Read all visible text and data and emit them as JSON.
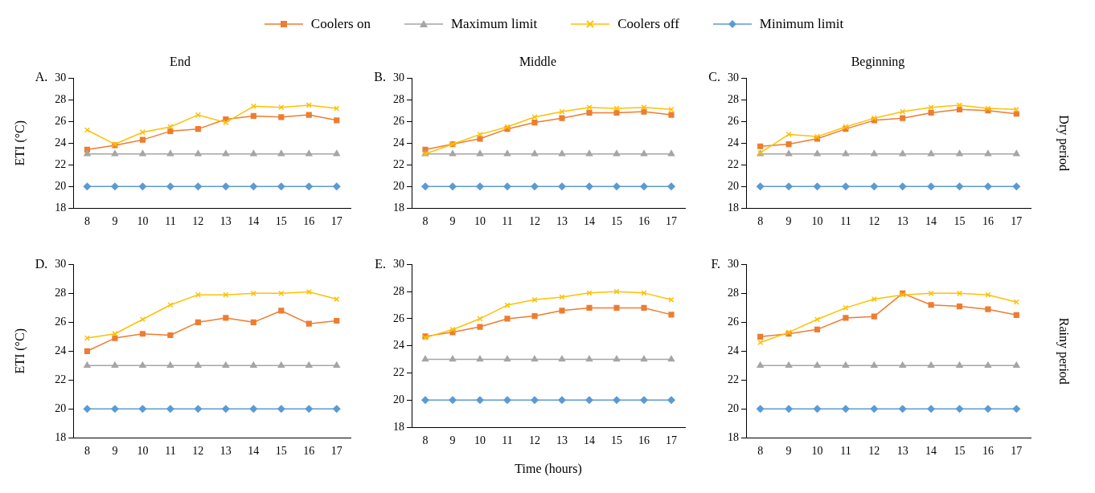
{
  "chart_data": [
    {
      "type": "line",
      "title": "End",
      "ylabel": "ETI (°C)",
      "annotations": [
        "A."
      ],
      "categories": [
        "8",
        "9",
        "10",
        "11",
        "12",
        "13",
        "14",
        "15",
        "16",
        "17"
      ],
      "ylim": [
        18,
        30
      ],
      "yticks": [
        18,
        20,
        22,
        24,
        26,
        28,
        30
      ],
      "grid": false,
      "legend": "top",
      "series": [
        {
          "name": "Coolers on",
          "color": "#ed7d31",
          "marker": "square",
          "values": [
            23.4,
            23.8,
            24.3,
            25.1,
            25.3,
            26.2,
            26.5,
            26.4,
            26.6,
            26.1
          ]
        },
        {
          "name": "Maximum limit",
          "color": "#a5a5a5",
          "marker": "triangle",
          "values": [
            23,
            23,
            23,
            23,
            23,
            23,
            23,
            23,
            23,
            23
          ]
        },
        {
          "name": "Coolers off",
          "color": "#ffc000",
          "marker": "cross",
          "values": [
            25.2,
            23.9,
            25.0,
            25.5,
            26.6,
            25.9,
            27.4,
            27.3,
            27.5,
            27.2
          ]
        },
        {
          "name": "Minimum limit",
          "color": "#5b9bd5",
          "marker": "diamond",
          "values": [
            20,
            20,
            20,
            20,
            20,
            20,
            20,
            20,
            20,
            20
          ]
        }
      ]
    },
    {
      "type": "line",
      "title": "Middle",
      "annotations": [
        "B."
      ],
      "categories": [
        "8",
        "9",
        "10",
        "11",
        "12",
        "13",
        "14",
        "15",
        "16",
        "17"
      ],
      "ylim": [
        18,
        30
      ],
      "yticks": [
        18,
        20,
        22,
        24,
        26,
        28,
        30
      ],
      "grid": false,
      "series": [
        {
          "color": "#ed7d31",
          "marker": "square",
          "values": [
            23.4,
            23.9,
            24.4,
            25.3,
            25.9,
            26.3,
            26.8,
            26.8,
            26.9,
            26.6
          ]
        },
        {
          "color": "#a5a5a5",
          "marker": "triangle",
          "values": [
            23,
            23,
            23,
            23,
            23,
            23,
            23,
            23,
            23,
            23
          ]
        },
        {
          "color": "#ffc000",
          "marker": "cross",
          "values": [
            23.0,
            23.9,
            24.8,
            25.5,
            26.4,
            26.9,
            27.3,
            27.2,
            27.3,
            27.1
          ]
        },
        {
          "color": "#5b9bd5",
          "marker": "diamond",
          "values": [
            20,
            20,
            20,
            20,
            20,
            20,
            20,
            20,
            20,
            20
          ]
        }
      ]
    },
    {
      "type": "line",
      "title": "Beginning",
      "annotations": [
        "C.",
        "Dry period"
      ],
      "categories": [
        "8",
        "9",
        "10",
        "11",
        "12",
        "13",
        "14",
        "15",
        "16",
        "17"
      ],
      "ylim": [
        18,
        30
      ],
      "yticks": [
        18,
        20,
        22,
        24,
        26,
        28,
        30
      ],
      "grid": false,
      "series": [
        {
          "color": "#ed7d31",
          "marker": "square",
          "values": [
            23.7,
            23.9,
            24.4,
            25.3,
            26.1,
            26.3,
            26.8,
            27.1,
            27.0,
            26.7
          ]
        },
        {
          "color": "#a5a5a5",
          "marker": "triangle",
          "values": [
            23,
            23,
            23,
            23,
            23,
            23,
            23,
            23,
            23,
            23
          ]
        },
        {
          "color": "#ffc000",
          "marker": "cross",
          "values": [
            23.1,
            24.8,
            24.6,
            25.5,
            26.3,
            26.9,
            27.3,
            27.5,
            27.2,
            27.1
          ]
        },
        {
          "color": "#5b9bd5",
          "marker": "diamond",
          "values": [
            20,
            20,
            20,
            20,
            20,
            20,
            20,
            20,
            20,
            20
          ]
        }
      ]
    },
    {
      "type": "line",
      "ylabel": "ETI (°C)",
      "annotations": [
        "D."
      ],
      "categories": [
        "8",
        "9",
        "10",
        "11",
        "12",
        "13",
        "14",
        "15",
        "16",
        "17"
      ],
      "ylim": [
        18,
        30
      ],
      "yticks": [
        18,
        20,
        22,
        24,
        26,
        28,
        30
      ],
      "grid": false,
      "series": [
        {
          "color": "#ed7d31",
          "marker": "square",
          "values": [
            24.0,
            24.9,
            25.2,
            25.1,
            26.0,
            26.3,
            26.0,
            26.8,
            25.9,
            26.1
          ]
        },
        {
          "color": "#a5a5a5",
          "marker": "triangle",
          "values": [
            23,
            23,
            23,
            23,
            23,
            23,
            23,
            23,
            23,
            23
          ]
        },
        {
          "color": "#ffc000",
          "marker": "cross",
          "values": [
            24.9,
            25.2,
            26.2,
            27.2,
            27.9,
            27.9,
            28.0,
            28.0,
            28.1,
            27.6
          ]
        },
        {
          "color": "#5b9bd5",
          "marker": "diamond",
          "values": [
            20,
            20,
            20,
            20,
            20,
            20,
            20,
            20,
            20,
            20
          ]
        }
      ]
    },
    {
      "type": "line",
      "xlabel": "Time (hours)",
      "annotations": [
        "E."
      ],
      "categories": [
        "8",
        "9",
        "10",
        "11",
        "12",
        "13",
        "14",
        "15",
        "16",
        "17"
      ],
      "ylim": [
        18,
        30
      ],
      "yticks": [
        18,
        20,
        22,
        24,
        26,
        28,
        30
      ],
      "grid": false,
      "series": [
        {
          "color": "#ed7d31",
          "marker": "square",
          "values": [
            24.7,
            25.0,
            25.4,
            26.0,
            26.2,
            26.6,
            26.8,
            26.8,
            26.8,
            26.3
          ]
        },
        {
          "color": "#a5a5a5",
          "marker": "triangle",
          "values": [
            23,
            23,
            23,
            23,
            23,
            23,
            23,
            23,
            23,
            23
          ]
        },
        {
          "color": "#ffc000",
          "marker": "cross",
          "values": [
            24.6,
            25.2,
            26.0,
            27.0,
            27.4,
            27.6,
            27.9,
            28.0,
            27.9,
            27.4
          ]
        },
        {
          "color": "#5b9bd5",
          "marker": "diamond",
          "values": [
            20,
            20,
            20,
            20,
            20,
            20,
            20,
            20,
            20,
            20
          ]
        }
      ]
    },
    {
      "type": "line",
      "annotations": [
        "F.",
        "Rainy period"
      ],
      "categories": [
        "8",
        "9",
        "10",
        "11",
        "12",
        "13",
        "14",
        "15",
        "16",
        "17"
      ],
      "ylim": [
        18,
        30
      ],
      "yticks": [
        18,
        20,
        22,
        24,
        26,
        28,
        30
      ],
      "grid": false,
      "series": [
        {
          "color": "#ed7d31",
          "marker": "square",
          "values": [
            25.0,
            25.2,
            25.5,
            26.3,
            26.4,
            28.0,
            27.2,
            27.1,
            26.9,
            26.5
          ]
        },
        {
          "color": "#a5a5a5",
          "marker": "triangle",
          "values": [
            23,
            23,
            23,
            23,
            23,
            23,
            23,
            23,
            23,
            23
          ]
        },
        {
          "color": "#ffc000",
          "marker": "cross",
          "values": [
            24.6,
            25.3,
            26.2,
            27.0,
            27.6,
            27.9,
            28.0,
            28.0,
            27.9,
            27.4
          ]
        },
        {
          "color": "#5b9bd5",
          "marker": "diamond",
          "values": [
            20,
            20,
            20,
            20,
            20,
            20,
            20,
            20,
            20,
            20
          ]
        }
      ]
    }
  ]
}
